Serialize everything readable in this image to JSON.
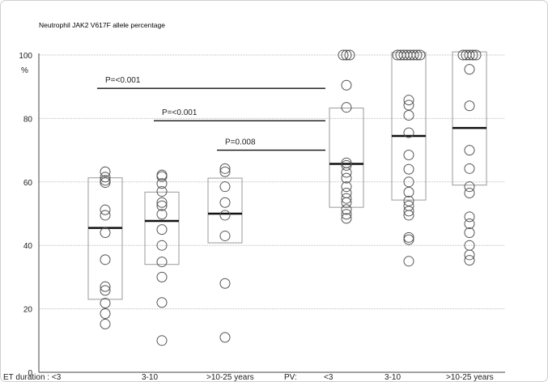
{
  "chart_data": {
    "type": "scatter",
    "title": "Neutrophil JAK2 V617F allele percentage",
    "ylabel": "%",
    "ylim": [
      0,
      100
    ],
    "yticks": [
      0,
      20,
      40,
      60,
      80,
      100
    ],
    "grid": true,
    "categories": [
      "ET duration : <3",
      "3-10",
      ">10-25 years",
      "PV:",
      "<3",
      "3-10",
      ">10-25 years"
    ],
    "groups": [
      {
        "name": "ET <3",
        "median": 45.5,
        "box": [
          23,
          61.3
        ],
        "points": [
          63.2,
          61.5,
          60.5,
          59.8,
          51.2,
          49.5,
          44,
          35.5,
          27,
          25.8,
          21.8,
          18.5,
          15.2
        ]
      },
      {
        "name": "ET 3-10",
        "median": 47.7,
        "box": [
          34,
          56.8
        ],
        "points": [
          62.2,
          61.7,
          59.5,
          57,
          53.5,
          52.5,
          49.8,
          45,
          40,
          34.8,
          30,
          22,
          10
        ]
      },
      {
        "name": "ET >10-25 years",
        "median": 50,
        "box": [
          40.8,
          61.2
        ],
        "points": [
          64.2,
          63.2,
          58.5,
          53.5,
          49.5,
          43,
          28,
          11
        ]
      },
      {
        "name": "PV <3",
        "median": 65.7,
        "box": [
          52,
          83.3
        ],
        "points": [
          100,
          100,
          100,
          90.5,
          83.5,
          66,
          65.2,
          63,
          61.2,
          58.5,
          56.5,
          54.8,
          53.5,
          51.3,
          49.8,
          48.5
        ]
      },
      {
        "name": "PV 3-10",
        "median": 74.5,
        "box": [
          54.3,
          100.8
        ],
        "points": [
          100,
          100,
          100,
          100,
          100,
          100,
          100,
          100,
          85.8,
          84.2,
          81,
          75.5,
          68.5,
          64,
          60,
          56.8,
          54,
          52.5,
          50.8,
          49.5,
          42.5,
          41.8,
          35
        ]
      },
      {
        "name": "PV >10-25 years",
        "median": 77,
        "box": [
          59,
          101
        ],
        "points": [
          100,
          100,
          100,
          100,
          100,
          95.5,
          84,
          70,
          64.2,
          58.5,
          56.5,
          49,
          46.8,
          44,
          40,
          37,
          35.3
        ]
      }
    ],
    "comparisons": [
      {
        "label": "P=<0.001",
        "level": 89.5,
        "from_group": 0,
        "to_group": 3
      },
      {
        "label": "P=<0.001",
        "level": 79.3,
        "from_group": 1,
        "to_group": 3
      },
      {
        "label": "P=0.008",
        "level": 70,
        "from_group": 2,
        "to_group": 3
      }
    ]
  }
}
